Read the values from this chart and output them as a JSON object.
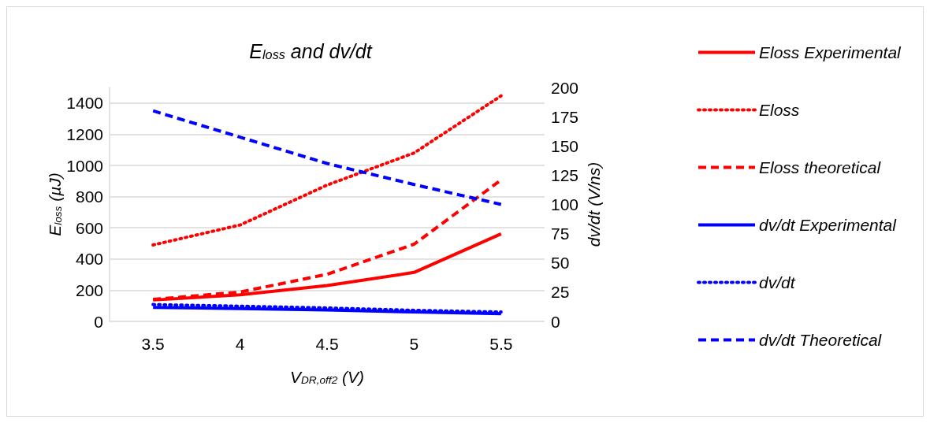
{
  "chart_data": {
    "type": "line",
    "title": "E$_{loss}$ and dv/dt",
    "xlabel": "V$_{DR,off2}$ (V)",
    "ylabel": "E$_{loss}$ (µJ)",
    "y2label": "dv/dt (V/ns)",
    "categories": [
      "3.5",
      "4",
      "4.5",
      "5",
      "5.5"
    ],
    "ylim": [
      0,
      1500
    ],
    "yticks": [
      0,
      200,
      400,
      600,
      800,
      1000,
      1200,
      1400
    ],
    "y2lim": [
      0,
      200
    ],
    "y2ticks": [
      0,
      25,
      50,
      75,
      100,
      125,
      150,
      175,
      200
    ],
    "grid": "y",
    "legend": "right",
    "marker": "none",
    "series": [
      {
        "name": "Eloss Experimental",
        "color": "#ff0000",
        "line_style": "solid",
        "values": [
          137,
          170,
          230,
          314,
          561
        ]
      },
      {
        "name": "Eloss",
        "color": "#ff0000",
        "line_style": "dotted",
        "values": [
          490,
          618,
          874,
          1080,
          1446
        ]
      },
      {
        "name": "Eloss theoretical",
        "color": "#ff0000",
        "line_style": "dashed",
        "values": [
          141,
          188,
          302,
          495,
          907
        ]
      },
      {
        "name": "dv/dt Experimental",
        "color": "#0000ff",
        "line_style": "solid",
        "axis": "y2",
        "values": [
          12,
          11,
          9.8,
          8,
          6.6
        ]
      },
      {
        "name": "dv/dt",
        "color": "#0000ff",
        "line_style": "dotted",
        "axis": "y2",
        "values": [
          14.4,
          13,
          11.5,
          9.5,
          8
        ]
      },
      {
        "name": "dv/dt Theoretical",
        "color": "#0000ff",
        "line_style": "dashed",
        "axis": "y2",
        "values": [
          180,
          157.5,
          135,
          117,
          100
        ]
      }
    ]
  }
}
